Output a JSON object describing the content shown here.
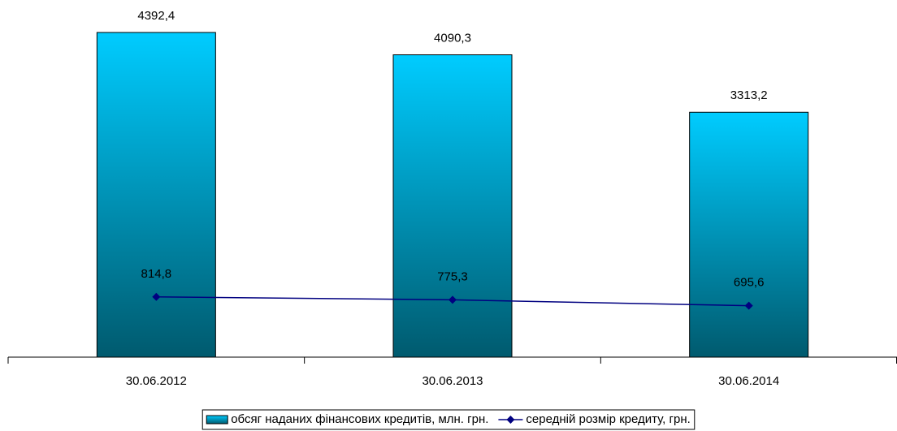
{
  "chart_data": {
    "type": "bar",
    "categories": [
      "30.06.2012",
      "30.06.2013",
      "30.06.2014"
    ],
    "series": [
      {
        "name": "обсяг наданих фінансових кредитів, млн. грн.",
        "type": "bar",
        "color": "#00ccff",
        "values": [
          4392.4,
          4090.3,
          3313.2
        ],
        "value_labels": [
          "4392,4",
          "4090,3",
          "3313,2"
        ]
      },
      {
        "name": "середній розмір кредиту, грн.",
        "type": "line",
        "color": "#000080",
        "values": [
          814.8,
          775.3,
          695.6
        ],
        "value_labels": [
          "814,8",
          "775,3",
          "695,6"
        ]
      }
    ],
    "legend": "bottom"
  }
}
